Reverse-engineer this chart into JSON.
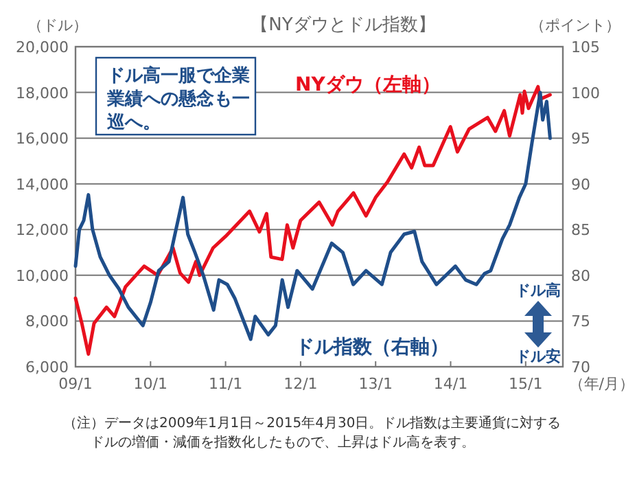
{
  "chart_data": {
    "type": "line",
    "title": "【NYダウとドル指数】",
    "ylabel": "（ドル）",
    "y2label": "（ポイント）",
    "xlabel": "（年/月）",
    "xlim": [
      "2009-01-01",
      "2015-07-01"
    ],
    "xticks": [
      {
        "value": "2009-01-01",
        "label": "09/1"
      },
      {
        "value": "2010-01-01",
        "label": "10/1"
      },
      {
        "value": "2011-01-01",
        "label": "11/1"
      },
      {
        "value": "2012-01-01",
        "label": "12/1"
      },
      {
        "value": "2013-01-01",
        "label": "13/1"
      },
      {
        "value": "2014-01-01",
        "label": "14/1"
      },
      {
        "value": "2015-01-01",
        "label": "15/1"
      }
    ],
    "ylim": [
      6000,
      20000
    ],
    "yticks": [
      {
        "value": 6000,
        "label": "6,000"
      },
      {
        "value": 8000,
        "label": "8,000"
      },
      {
        "value": 10000,
        "label": "10,000"
      },
      {
        "value": 12000,
        "label": "12,000"
      },
      {
        "value": 14000,
        "label": "14,000"
      },
      {
        "value": 16000,
        "label": "16,000"
      },
      {
        "value": 18000,
        "label": "18,000"
      },
      {
        "value": 20000,
        "label": "20,000"
      }
    ],
    "y2lim": [
      70,
      105
    ],
    "y2ticks": [
      70,
      75,
      80,
      85,
      90,
      95,
      100,
      105
    ],
    "grid": "y",
    "legend": false,
    "marker": "none",
    "line_style": "solid",
    "series": [
      {
        "name": "NYダウ（左軸）",
        "color": "#e8101e",
        "x": [
          "2009-01-01",
          "2009-02-01",
          "2009-03-05",
          "2009-04-01",
          "2009-06-01",
          "2009-07-10",
          "2009-09-01",
          "2009-12-01",
          "2010-02-05",
          "2010-04-20",
          "2010-05-25",
          "2010-07-05",
          "2010-08-10",
          "2010-08-28",
          "2010-11-01",
          "2011-01-01",
          "2011-04-28",
          "2011-06-15",
          "2011-07-20",
          "2011-08-10",
          "2011-10-03",
          "2011-10-28",
          "2011-11-25",
          "2012-01-01",
          "2012-04-01",
          "2012-06-04",
          "2012-07-01",
          "2012-09-15",
          "2012-11-15",
          "2013-01-01",
          "2013-03-01",
          "2013-05-20",
          "2013-06-25",
          "2013-08-01",
          "2013-08-28",
          "2013-10-08",
          "2013-12-31",
          "2014-02-03",
          "2014-04-01",
          "2014-06-30",
          "2014-08-07",
          "2014-09-19",
          "2014-10-15",
          "2014-12-05",
          "2014-12-16",
          "2014-12-26",
          "2015-01-15",
          "2015-03-02",
          "2015-03-11",
          "2015-04-30"
        ],
        "values": [
          9000,
          7900,
          6550,
          7900,
          8600,
          8200,
          9500,
          10400,
          10000,
          11200,
          10100,
          9700,
          10600,
          10000,
          11200,
          11700,
          12800,
          11900,
          12700,
          10800,
          10700,
          12200,
          11200,
          12400,
          13200,
          12200,
          12800,
          13600,
          12600,
          13400,
          14100,
          15300,
          14700,
          15600,
          14800,
          14800,
          16500,
          15400,
          16400,
          16900,
          16300,
          17200,
          16100,
          17900,
          17100,
          18050,
          17300,
          18250,
          17700,
          17900
        ]
      },
      {
        "name": "ドル指数（右軸）",
        "color": "#1f4e8a",
        "axis": "y2",
        "x": [
          "2009-01-01",
          "2009-01-20",
          "2009-02-10",
          "2009-03-05",
          "2009-03-25",
          "2009-05-01",
          "2009-06-15",
          "2009-08-01",
          "2009-09-15",
          "2009-11-25",
          "2010-01-01",
          "2010-02-10",
          "2010-04-01",
          "2010-06-08",
          "2010-07-01",
          "2010-08-05",
          "2010-09-15",
          "2010-11-04",
          "2010-11-30",
          "2011-01-10",
          "2011-02-15",
          "2011-05-03",
          "2011-05-25",
          "2011-07-28",
          "2011-09-01",
          "2011-10-04",
          "2011-11-01",
          "2011-12-15",
          "2012-02-28",
          "2012-06-01",
          "2012-07-25",
          "2012-09-14",
          "2012-11-15",
          "2013-02-01",
          "2013-03-15",
          "2013-05-20",
          "2013-07-09",
          "2013-08-15",
          "2013-10-24",
          "2014-01-24",
          "2014-03-15",
          "2014-05-06",
          "2014-06-15",
          "2014-07-15",
          "2014-09-10",
          "2014-10-15",
          "2014-12-01",
          "2015-01-01",
          "2015-02-01",
          "2015-03-13",
          "2015-03-25",
          "2015-04-13",
          "2015-04-30"
        ],
        "values": [
          81,
          85,
          86,
          88.8,
          85,
          82,
          80,
          78.5,
          76.5,
          74.5,
          77,
          80.5,
          81.5,
          88.5,
          84.5,
          82.5,
          80,
          76.2,
          79.5,
          79,
          77.5,
          73,
          75.5,
          73.5,
          74.5,
          79.5,
          76.5,
          80.5,
          78.5,
          83.5,
          82.5,
          79,
          80.5,
          79,
          82.5,
          84.5,
          84.8,
          81.5,
          79,
          81,
          79.5,
          79,
          80.2,
          80.5,
          84,
          85.5,
          88.5,
          90,
          94.5,
          100,
          97,
          99,
          95
        ]
      }
    ],
    "annotations": [
      {
        "text": "ドル高一服で企業業績への懸念も一巡へ。"
      },
      {
        "text": "ドル高"
      },
      {
        "text": "ドル安"
      },
      {
        "text": "（注）データは2009年1月1日～2015年4月30日。ドル指数は主要通貨に対するドルの増価・減価を指数化したもので、上昇はドル高を表す。"
      }
    ]
  }
}
